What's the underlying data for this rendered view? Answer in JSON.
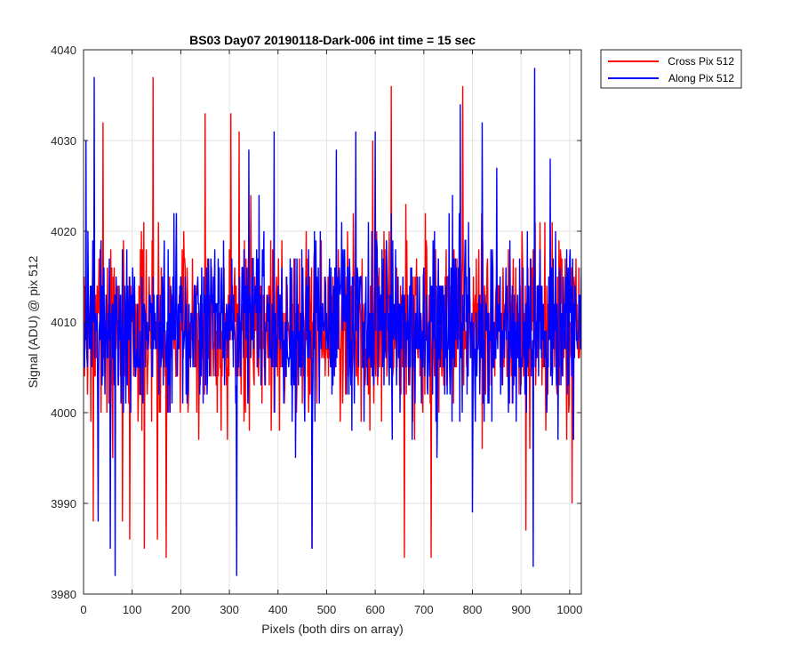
{
  "chart_data": {
    "type": "line",
    "title": "BS03 Day07 20190118-Dark-006 int time = 15 sec",
    "xlabel": "Pixels (both dirs on array)",
    "ylabel": "Signal (ADU) @ pix 512",
    "xlim": [
      0,
      1024
    ],
    "ylim": [
      3980,
      4040
    ],
    "xticks": [
      0,
      100,
      200,
      300,
      400,
      500,
      600,
      700,
      800,
      900,
      1000
    ],
    "yticks": [
      3980,
      3990,
      4000,
      4010,
      4020,
      4030,
      4040
    ],
    "grid": true,
    "legend_position": "outside-top-right",
    "series": [
      {
        "name": "Cross Pix 512",
        "color": "#ff0000",
        "noise_seed": 7,
        "mean": 4009.5,
        "annotated_points": [
          {
            "x": 20,
            "y": 3988
          },
          {
            "x": 40,
            "y": 4032
          },
          {
            "x": 60,
            "y": 3995
          },
          {
            "x": 80,
            "y": 3988
          },
          {
            "x": 95,
            "y": 3986
          },
          {
            "x": 125,
            "y": 3985
          },
          {
            "x": 143,
            "y": 4037
          },
          {
            "x": 152,
            "y": 3986
          },
          {
            "x": 170,
            "y": 3984
          },
          {
            "x": 250,
            "y": 4033
          },
          {
            "x": 303,
            "y": 4033
          },
          {
            "x": 320,
            "y": 4031
          },
          {
            "x": 470,
            "y": 3985
          },
          {
            "x": 595,
            "y": 4030
          },
          {
            "x": 633,
            "y": 4036
          },
          {
            "x": 660,
            "y": 3984
          },
          {
            "x": 715,
            "y": 3984
          },
          {
            "x": 780,
            "y": 4036
          },
          {
            "x": 910,
            "y": 3987
          },
          {
            "x": 1005,
            "y": 3990
          }
        ]
      },
      {
        "name": "Along Pix 512",
        "color": "#0000ff",
        "noise_seed": 19,
        "mean": 4009.5,
        "annotated_points": [
          {
            "x": 5,
            "y": 4030
          },
          {
            "x": 22,
            "y": 4037
          },
          {
            "x": 30,
            "y": 3988
          },
          {
            "x": 55,
            "y": 3985
          },
          {
            "x": 65,
            "y": 3982
          },
          {
            "x": 315,
            "y": 3982
          },
          {
            "x": 340,
            "y": 4029
          },
          {
            "x": 392,
            "y": 4031
          },
          {
            "x": 470,
            "y": 3985
          },
          {
            "x": 520,
            "y": 4029
          },
          {
            "x": 560,
            "y": 4031
          },
          {
            "x": 600,
            "y": 4031
          },
          {
            "x": 775,
            "y": 4034
          },
          {
            "x": 800,
            "y": 3989
          },
          {
            "x": 820,
            "y": 4032
          },
          {
            "x": 850,
            "y": 4027
          },
          {
            "x": 925,
            "y": 3983
          },
          {
            "x": 928,
            "y": 4038
          },
          {
            "x": 960,
            "y": 4028
          }
        ]
      }
    ]
  }
}
